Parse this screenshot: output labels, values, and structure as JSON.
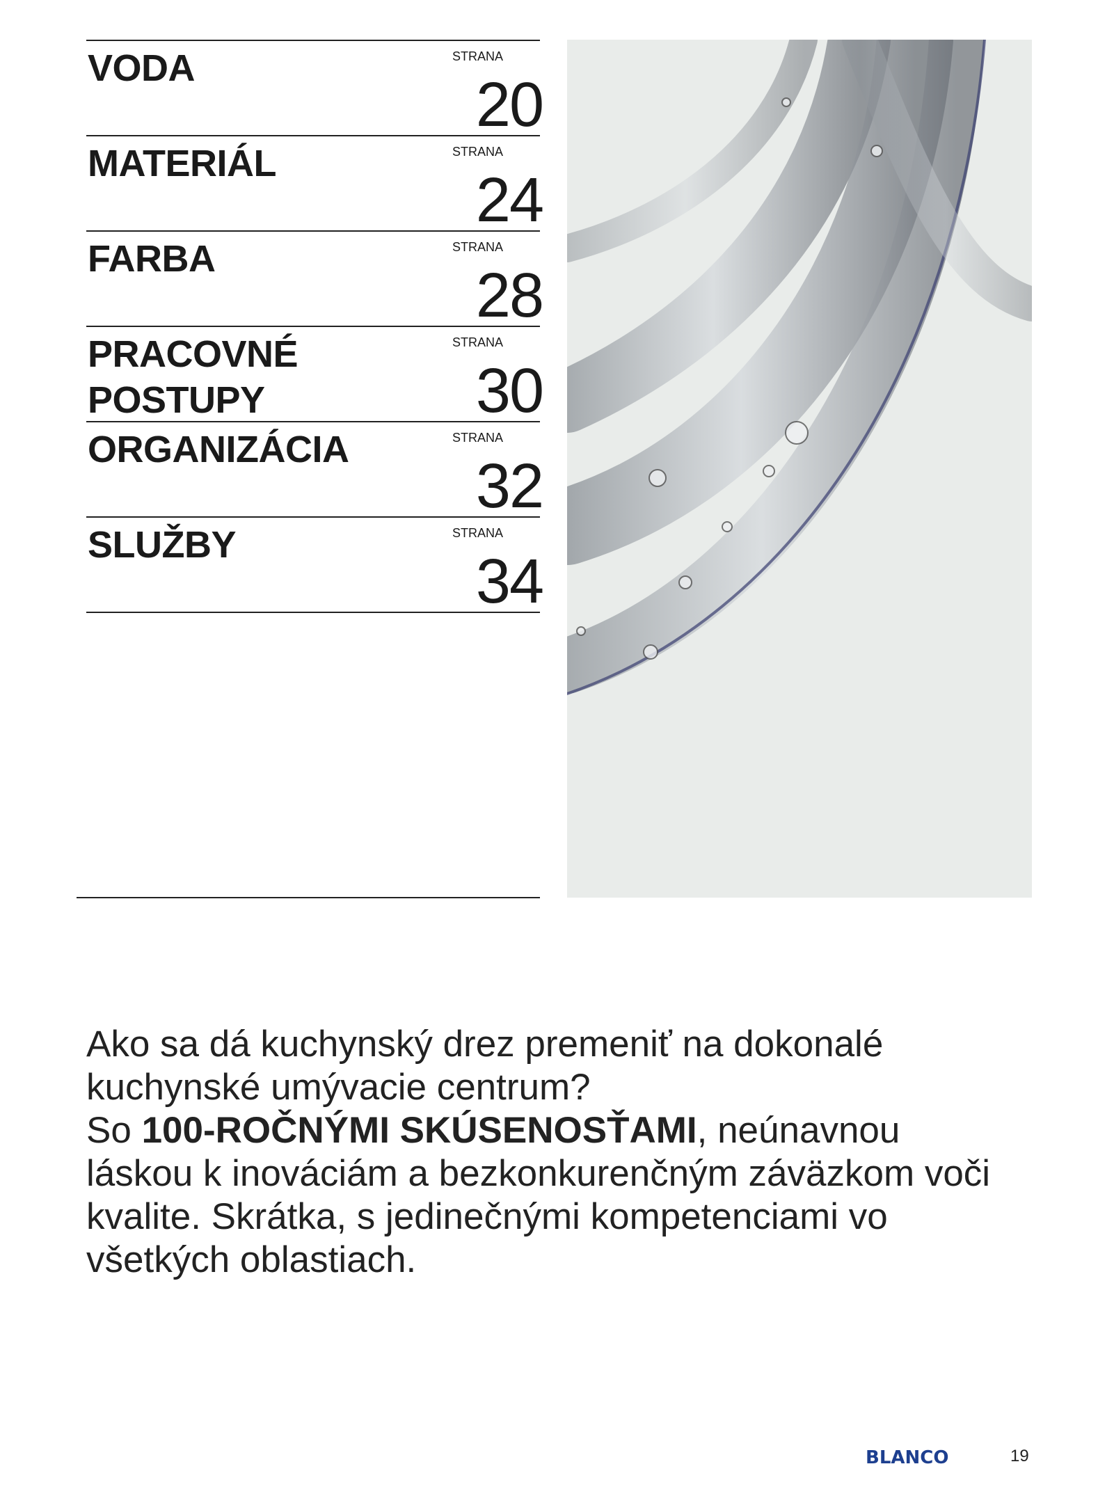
{
  "toc": [
    {
      "title": "VODA",
      "label": "STRANA",
      "page": "20"
    },
    {
      "title": "MATERIÁL",
      "label": "STRANA",
      "page": "24"
    },
    {
      "title": "FARBA",
      "label": "STRANA",
      "page": "28"
    },
    {
      "title": "PRACOVNÉ POSTUPY",
      "label": "STRANA",
      "page": "30"
    },
    {
      "title": "ORGANIZÁCIA",
      "label": "STRANA",
      "page": "32"
    },
    {
      "title": "SLUŽBY",
      "label": "STRANA",
      "page": "34"
    }
  ],
  "intro": {
    "question": "Ako sa dá kuchynský drez premeniť na dokonalé kuchynské umývacie centrum?",
    "lead": "So ",
    "emphasis": "100-ROČNÝMI SKÚSENOSŤAMI",
    "rest": ", neúnavnou láskou k inováciám a bezkonkurenčným záväzkom voči kvalite. Skrátka, s jedinečnými kompetenciami vo všetkých oblastiach."
  },
  "footer": {
    "brand": "BLANCO",
    "page_number": "19",
    "brand_color": "#1d3f8f"
  },
  "image": {
    "subject": "water-tubes-photo"
  }
}
